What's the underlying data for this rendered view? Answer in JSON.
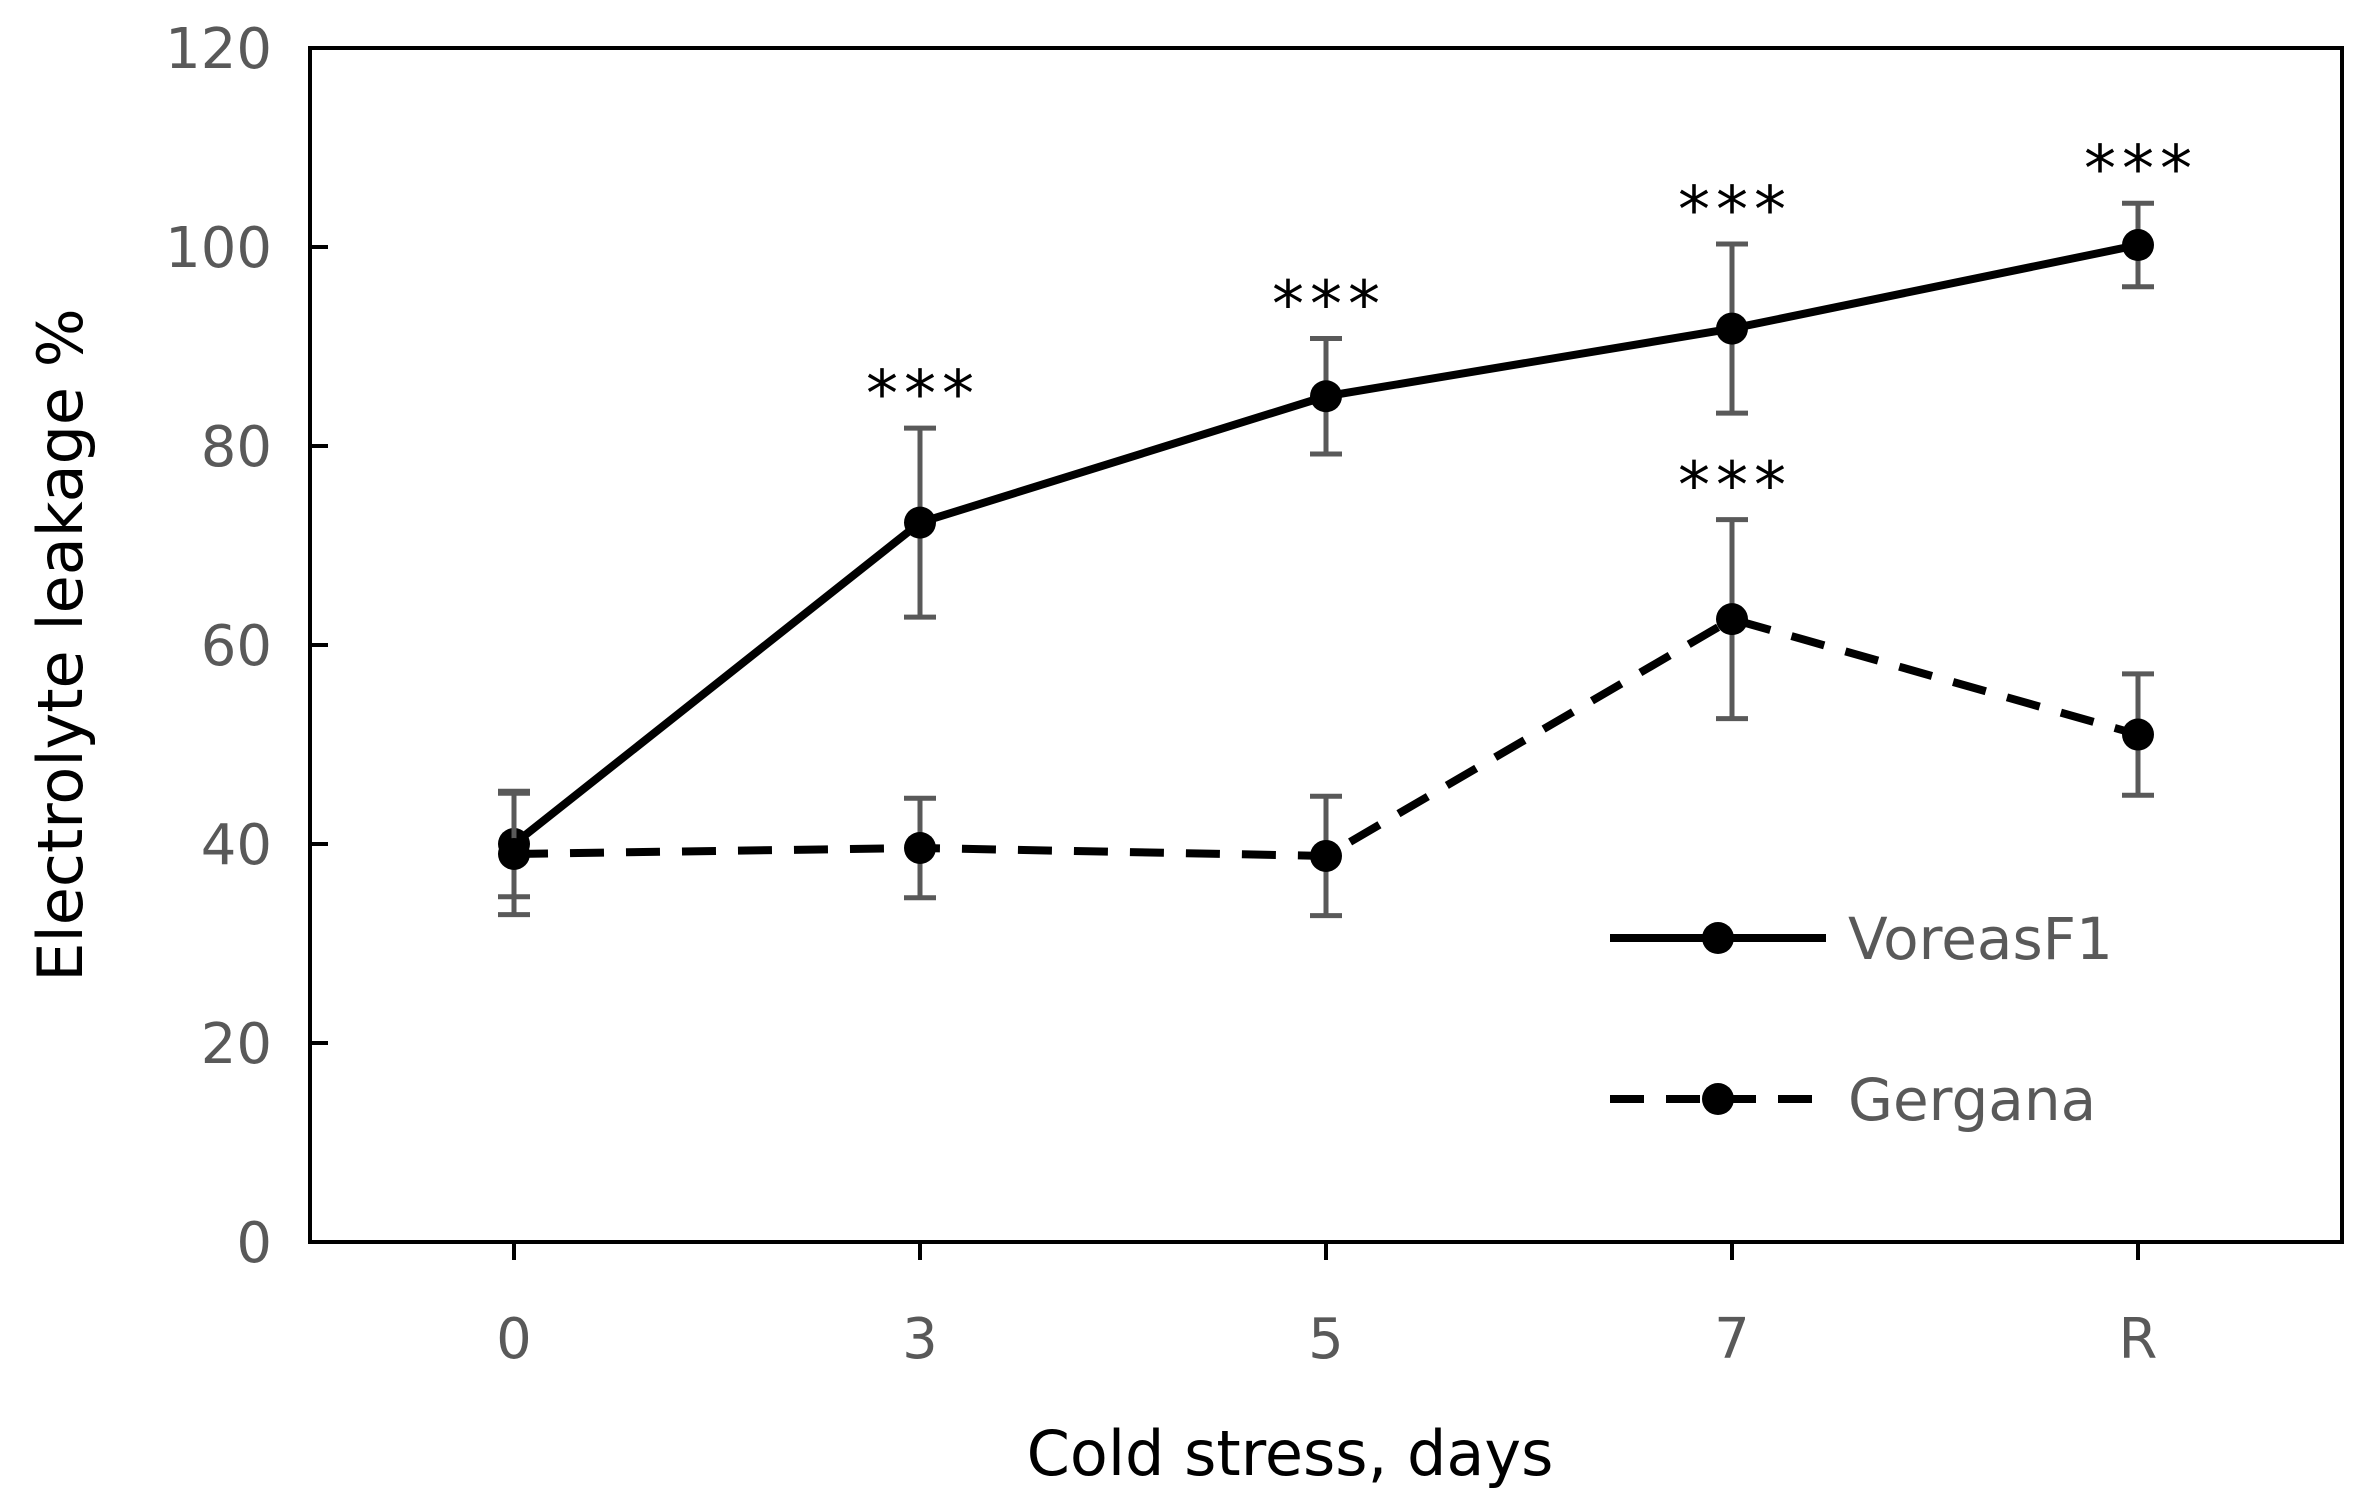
{
  "chart_data": {
    "type": "line",
    "title": "",
    "xlabel": "Cold stress, days",
    "ylabel": "Electrolyte leakage  %",
    "categories": [
      "0",
      "3",
      "5",
      "7",
      "R"
    ],
    "ylim": [
      0,
      120
    ],
    "yticks": [
      0,
      20,
      40,
      60,
      80,
      100,
      120
    ],
    "grid": false,
    "legend_position": "bottom-right",
    "series": [
      {
        "name": "VoreasF1",
        "line_style": "solid",
        "color": "#000000",
        "values": [
          40,
          72.3,
          85,
          91.8,
          100.2
        ],
        "error": [
          5.3,
          9.5,
          5.8,
          8.5,
          4.2
        ],
        "significance": [
          "",
          "***",
          "***",
          "***",
          "***"
        ]
      },
      {
        "name": "Gergana",
        "line_style": "dashed",
        "color": "#000000",
        "values": [
          39,
          39.6,
          38.8,
          62.6,
          51
        ],
        "error": [
          6.1,
          5,
          6,
          10,
          6.1
        ],
        "significance": [
          "",
          "",
          "",
          "***",
          ""
        ]
      }
    ],
    "errorbar_color": "#595959"
  }
}
